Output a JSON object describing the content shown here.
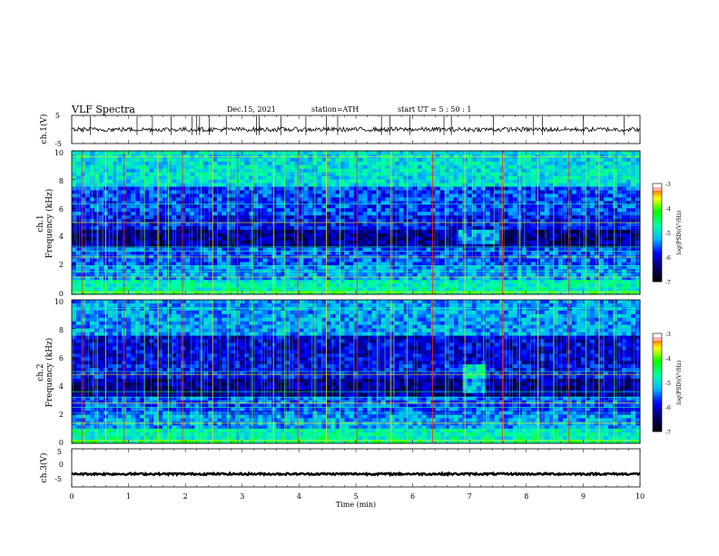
{
  "header": {
    "title": "VLF  Spectra",
    "date": "Dec.15, 2021",
    "station": "station=ATH",
    "start": "start  UT  =   5  : 50 : 1"
  },
  "colors": {
    "colormap": [
      "#000000",
      "#00006e",
      "#0000ff",
      "#00b4ff",
      "#00ffaa",
      "#00ff00",
      "#ffff00",
      "#ff0000",
      "#ffffff"
    ]
  },
  "chart_data": [
    {
      "type": "line",
      "panel": "ch1-waveform",
      "ylabel": "ch.1(V)",
      "ylim": [
        -5,
        5
      ],
      "yticks": [
        "5",
        "-5"
      ],
      "baseline_v": 0,
      "noise_amplitude_v": 0.8,
      "spike_times_min": [
        0.33,
        1.15,
        1.42,
        1.75,
        2.12,
        2.2,
        2.25,
        2.42,
        2.72,
        3.25,
        3.3,
        3.68,
        4.12,
        4.48,
        4.68,
        5.45,
        5.6,
        5.95,
        6.55,
        6.68,
        7.42,
        8.12,
        8.28,
        9.0,
        9.72
      ]
    },
    {
      "type": "heatmap",
      "panel": "ch1-spectrogram",
      "ylabel_top": "ch.1",
      "ylabel": "Frequency  (kHz)",
      "ylim": [
        0,
        10
      ],
      "yticks": [
        "0",
        "2",
        "4",
        "6",
        "8",
        "10"
      ],
      "xlim": [
        0,
        10
      ],
      "clim": [
        -7,
        -3
      ],
      "colorbar_label": "log(PSD)(V²/Hz)",
      "colorbar_ticks": [
        "-3",
        "-4",
        "-5",
        "-6",
        "-7"
      ],
      "sferic_times_min": [
        0.18,
        0.45,
        0.6,
        0.8,
        0.92,
        1.28,
        1.52,
        1.7,
        1.95,
        2.28,
        2.48,
        2.75,
        2.92,
        3.18,
        3.55,
        3.75,
        3.98,
        4.28,
        4.48,
        4.72,
        5.02,
        5.38,
        5.62,
        5.9,
        6.35,
        6.58,
        6.92,
        7.25,
        7.58,
        7.88,
        8.2,
        8.48,
        8.75,
        9.05,
        9.28,
        9.55
      ],
      "hiss_band_khz": [
        3.5,
        4.5
      ],
      "hiss_interval_min": [
        6.8,
        7.5
      ],
      "horizontal_lines_khz": [
        0.15,
        0.5,
        0.8,
        1.2,
        1.6,
        2.0,
        2.6,
        3.0,
        3.3,
        5.0,
        6.3,
        8.4,
        9.6
      ]
    },
    {
      "type": "heatmap",
      "panel": "ch2-spectrogram",
      "ylabel_top": "ch.2",
      "ylabel": "Frequency  (kHz)",
      "ylim": [
        0,
        10
      ],
      "yticks": [
        "0",
        "2",
        "4",
        "6",
        "8",
        "10"
      ],
      "xlim": [
        0,
        10
      ],
      "clim": [
        -7,
        -3
      ],
      "colorbar_label": "log(PSD)(V²/Hz)",
      "colorbar_ticks": [
        "-3",
        "-4",
        "-5",
        "-6",
        "-7"
      ],
      "sferic_times_min": [
        0.18,
        0.45,
        0.6,
        0.8,
        0.92,
        1.28,
        1.52,
        1.7,
        1.95,
        2.28,
        2.48,
        2.75,
        2.92,
        3.18,
        3.55,
        3.75,
        3.98,
        4.28,
        4.48,
        4.72,
        5.02,
        5.38,
        5.62,
        5.9,
        6.35,
        6.58,
        6.92,
        7.25,
        7.58,
        7.88,
        8.2,
        8.48,
        8.75,
        9.05,
        9.28,
        9.55
      ],
      "hiss_band_khz": [
        3.5,
        5.5
      ],
      "hiss_interval_min": [
        6.9,
        7.3
      ],
      "horizontal_lines_khz": [
        0.2,
        0.6,
        1.0,
        1.4,
        2.1,
        2.5,
        2.8,
        3.2,
        3.6,
        4.8,
        5.0,
        9.4
      ]
    },
    {
      "type": "line",
      "panel": "ch3-waveform",
      "ylabel": "ch.3(V)",
      "ylim": [
        -5,
        5
      ],
      "yticks": [
        "5",
        "0",
        "-5"
      ],
      "baseline_v": -1.6,
      "noise_amplitude_v": 0.25,
      "xlabel": "Time  (min)",
      "xlim": [
        0,
        10
      ],
      "xticks": [
        "0",
        "1",
        "2",
        "3",
        "4",
        "5",
        "6",
        "7",
        "8",
        "9",
        "10"
      ]
    }
  ]
}
